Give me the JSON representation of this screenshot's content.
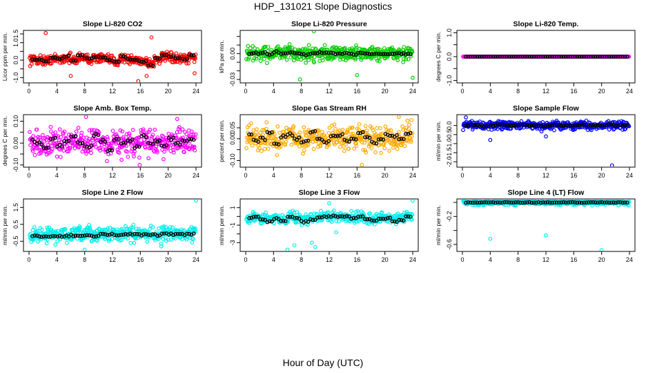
{
  "figure": {
    "title": "HDP_131021  Slope Diagnostics",
    "xlabel": "Hour of Day (UTC)"
  },
  "chart_data": [
    {
      "type": "scatter",
      "title": "Slope Li-820 CO2",
      "ylabel": "Licor ppm per min.",
      "xlim": [
        0,
        24
      ],
      "xticks": [
        0,
        4,
        8,
        12,
        16,
        20,
        24
      ],
      "ylim": [
        -1.3,
        1.7
      ],
      "yticks": [
        -1.0,
        -0.5,
        0.0,
        0.5,
        1.0,
        1.5
      ],
      "yticklabels": [
        "-1.0",
        "",
        "0.0",
        "",
        "1.0",
        "1.5"
      ],
      "color": "#ff0000",
      "spread": 0.22,
      "outliers": [
        [
          2.4,
          1.55
        ],
        [
          6.0,
          -0.9
        ],
        [
          15.7,
          -1.2
        ],
        [
          16.9,
          -0.9
        ],
        [
          17.6,
          1.3
        ],
        [
          23.8,
          -0.75
        ]
      ],
      "means": [
        0.05,
        0.02,
        -0.05,
        0.12,
        0.1,
        0.2,
        -0.02,
        0.3,
        0.1,
        0.2,
        0.15,
        0.0,
        -0.1,
        0.2,
        0.05,
        0.0,
        -0.1,
        -0.3,
        0.1,
        0.3,
        0.2,
        0.1,
        0.05,
        0.3
      ],
      "mean_color": "#000000"
    },
    {
      "type": "scatter",
      "title": "Slope Li-820 Pressure",
      "ylabel": "kPa per min.",
      "xlim": [
        0,
        24
      ],
      "xticks": [
        0,
        4,
        8,
        12,
        16,
        20,
        24
      ],
      "ylim": [
        -0.034,
        0.027
      ],
      "yticks": [
        -0.03,
        -0.02,
        -0.01,
        0.0,
        0.01,
        0.02
      ],
      "yticklabels": [
        "-0.03",
        "",
        "",
        "0.00",
        "",
        ""
      ],
      "color": "#00cc00",
      "spread": 0.007,
      "outliers": [
        [
          9.8,
          0.026
        ],
        [
          7.8,
          -0.03
        ],
        [
          16.0,
          -0.025
        ],
        [
          24.0,
          -0.028
        ]
      ],
      "means": [
        0.0,
        0.0,
        0.001,
        -0.001,
        0.002,
        0.0,
        0.001,
        0.0,
        -0.001,
        0.0,
        0.001,
        0.0,
        0.0,
        0.0,
        0.0,
        0.0,
        0.001,
        0.0,
        0.0,
        0.0,
        0.0,
        0.0,
        0.0,
        0.0
      ],
      "mean_color": "#000000"
    },
    {
      "type": "scatter",
      "title": "Slope Li-820 Temp.",
      "ylabel": "degrees C per min.",
      "xlim": [
        0,
        24
      ],
      "xticks": [
        0,
        4,
        8,
        12,
        16,
        20,
        24
      ],
      "ylim": [
        -1.1,
        1.1
      ],
      "yticks": [
        -1.0,
        -0.5,
        0.0,
        0.5,
        1.0
      ],
      "yticklabels": [
        "-1.0",
        "",
        "0.0",
        "",
        "1.0"
      ],
      "color": "#ff00ff",
      "spread": 0.0,
      "outliers": [],
      "means": [
        0,
        0,
        0,
        0,
        0,
        0,
        0,
        0,
        0,
        0,
        0,
        0,
        0,
        0,
        0,
        0,
        0,
        0,
        0,
        0,
        0,
        0,
        0,
        0
      ],
      "mean_color": "#000000"
    },
    {
      "type": "scatter",
      "title": "Slope Amb. Box Temp.",
      "ylabel": "degrees C per min.",
      "xlim": [
        0,
        24
      ],
      "xticks": [
        0,
        4,
        8,
        12,
        16,
        20,
        24
      ],
      "ylim": [
        -0.11,
        0.13
      ],
      "yticks": [
        -0.1,
        -0.05,
        0.0,
        0.05,
        0.1
      ],
      "yticklabels": [
        "-0.10",
        "",
        "0.00",
        "",
        "0.10"
      ],
      "color": "#ff00ff",
      "spread": 0.045,
      "outliers": [
        [
          8.2,
          0.12
        ],
        [
          15.9,
          -0.1
        ],
        [
          21.3,
          0.11
        ]
      ],
      "means": [
        0.01,
        0.0,
        -0.02,
        0.02,
        -0.01,
        0.01,
        0.03,
        0.0,
        -0.02,
        0.04,
        0.01,
        -0.03,
        0.02,
        0.0,
        0.01,
        -0.02,
        0.03,
        0.0,
        0.01,
        -0.01,
        0.02,
        0.0,
        0.01,
        0.02
      ],
      "mean_color": "#000000"
    },
    {
      "type": "scatter",
      "title": "Slope Gas Stream RH",
      "ylabel": "percent per min.",
      "xlim": [
        0,
        24
      ],
      "xticks": [
        0,
        4,
        8,
        12,
        16,
        20,
        24
      ],
      "ylim": [
        -0.13,
        0.11
      ],
      "yticks": [
        -0.1,
        -0.05,
        0.0,
        0.05
      ],
      "yticklabels": [
        "-0.10",
        "",
        "0.00",
        "0.05"
      ],
      "color": "#ffaa00",
      "spread": 0.045,
      "outliers": [
        [
          16.7,
          -0.12
        ],
        [
          22.0,
          0.1
        ]
      ],
      "means": [
        0.02,
        -0.01,
        0.0,
        0.03,
        -0.02,
        0.01,
        0.02,
        0.0,
        -0.01,
        0.03,
        0.0,
        -0.02,
        0.01,
        0.02,
        -0.01,
        0.0,
        0.03,
        0.01,
        -0.02,
        0.0,
        0.02,
        0.01,
        0.0,
        0.02
      ],
      "mean_color": "#000000"
    },
    {
      "type": "scatter",
      "title": "Slope Sample Flow",
      "ylabel": "ml/min per min.",
      "xlim": [
        0,
        24
      ],
      "xticks": [
        0,
        4,
        8,
        12,
        16,
        20,
        24
      ],
      "ylim": [
        -2.3,
        0.6
      ],
      "yticks": [
        -2.0,
        -1.5,
        -1.0,
        -0.5,
        0.0
      ],
      "yticklabels": [
        "-2.0",
        "-1.5",
        "-1.0",
        "-0.5",
        "0.0"
      ],
      "color": "#0000ff",
      "spread": 0.18,
      "outliers": [
        [
          21.5,
          -2.2
        ],
        [
          4.0,
          -0.8
        ],
        [
          12.0,
          -0.6
        ],
        [
          0.5,
          0.45
        ]
      ],
      "means": [
        0.0,
        0.05,
        0.0,
        -0.05,
        0.0,
        0.05,
        0.0,
        0.0,
        0.05,
        0.0,
        0.0,
        -0.05,
        0.0,
        0.05,
        0.0,
        0.0,
        0.0,
        0.05,
        0.0,
        0.0,
        0.0,
        0.05,
        0.0,
        0.0
      ],
      "mean_color": "#000000"
    },
    {
      "type": "scatter",
      "title": "Slope Line 2 Flow",
      "ylabel": "ml/min per min.",
      "xlim": [
        0,
        24
      ],
      "xticks": [
        0,
        4,
        8,
        12,
        16,
        20,
        24
      ],
      "ylim": [
        -1.1,
        2.0
      ],
      "yticks": [
        -0.5,
        0.5,
        1.5
      ],
      "yticklabels": [
        "-0.5",
        "0.5",
        "1.5"
      ],
      "color": "#00eeee",
      "spread": 0.35,
      "outliers": [
        [
          24.0,
          1.9
        ],
        [
          8.0,
          -1.0
        ],
        [
          3.8,
          -0.7
        ],
        [
          19.0,
          -0.8
        ]
      ],
      "means": [
        -0.2,
        -0.2,
        -0.2,
        -0.2,
        -0.2,
        -0.2,
        -0.2,
        -0.15,
        -0.15,
        -0.15,
        -0.1,
        -0.1,
        -0.1,
        -0.1,
        -0.1,
        -0.1,
        -0.1,
        -0.1,
        -0.1,
        -0.1,
        -0.1,
        -0.1,
        -0.1,
        -0.1
      ],
      "mean_color": "#000000"
    },
    {
      "type": "scatter",
      "title": "Slope Line 3 Flow",
      "ylabel": "ml/min per min.",
      "xlim": [
        0,
        24
      ],
      "xticks": [
        0,
        4,
        8,
        12,
        16,
        20,
        24
      ],
      "ylim": [
        -4.0,
        2.0
      ],
      "yticks": [
        -3,
        -2,
        -1,
        0,
        1
      ],
      "yticklabels": [
        "-3",
        "",
        "-1",
        "",
        "1"
      ],
      "color": "#00eeee",
      "spread": 0.5,
      "outliers": [
        [
          7.0,
          -3.3
        ],
        [
          9.5,
          -3.0
        ],
        [
          10.0,
          -3.5
        ],
        [
          6.0,
          -3.8
        ],
        [
          24.0,
          1.8
        ],
        [
          12.0,
          1.5
        ],
        [
          13.0,
          -1.8
        ]
      ],
      "means": [
        -0.2,
        0.0,
        -0.4,
        -0.6,
        -0.3,
        -0.5,
        0.0,
        -0.2,
        -0.6,
        -0.4,
        -0.1,
        0.0,
        0.0,
        0.0,
        0.0,
        -0.2,
        0.0,
        -0.3,
        -0.5,
        -0.3,
        -0.2,
        -0.6,
        -0.4,
        0.0
      ],
      "mean_color": "#000000"
    },
    {
      "type": "scatter",
      "title": "Slope Line 4 (LT) Flow",
      "ylabel": "ml/min per min.",
      "xlim": [
        0,
        24
      ],
      "xticks": [
        0,
        4,
        8,
        12,
        16,
        20,
        24
      ],
      "ylim": [
        -0.7,
        0.05
      ],
      "yticks": [
        -0.6,
        -0.4,
        -0.2,
        0.0
      ],
      "yticklabels": [
        "-0.6",
        "",
        "-0.2",
        ""
      ],
      "color": "#00eeee",
      "spread": 0.03,
      "outliers": [
        [
          4.0,
          -0.52
        ],
        [
          12.0,
          -0.47
        ],
        [
          20.0,
          -0.68
        ]
      ],
      "means": [
        0.0,
        0.0,
        0.0,
        0.0,
        0.0,
        0.0,
        0.0,
        0.0,
        0.0,
        0.0,
        0.0,
        0.0,
        0.0,
        0.0,
        0.0,
        0.0,
        0.0,
        0.0,
        0.0,
        0.0,
        0.0,
        0.0,
        0.0,
        0.0
      ],
      "mean_color": "#000000"
    }
  ]
}
